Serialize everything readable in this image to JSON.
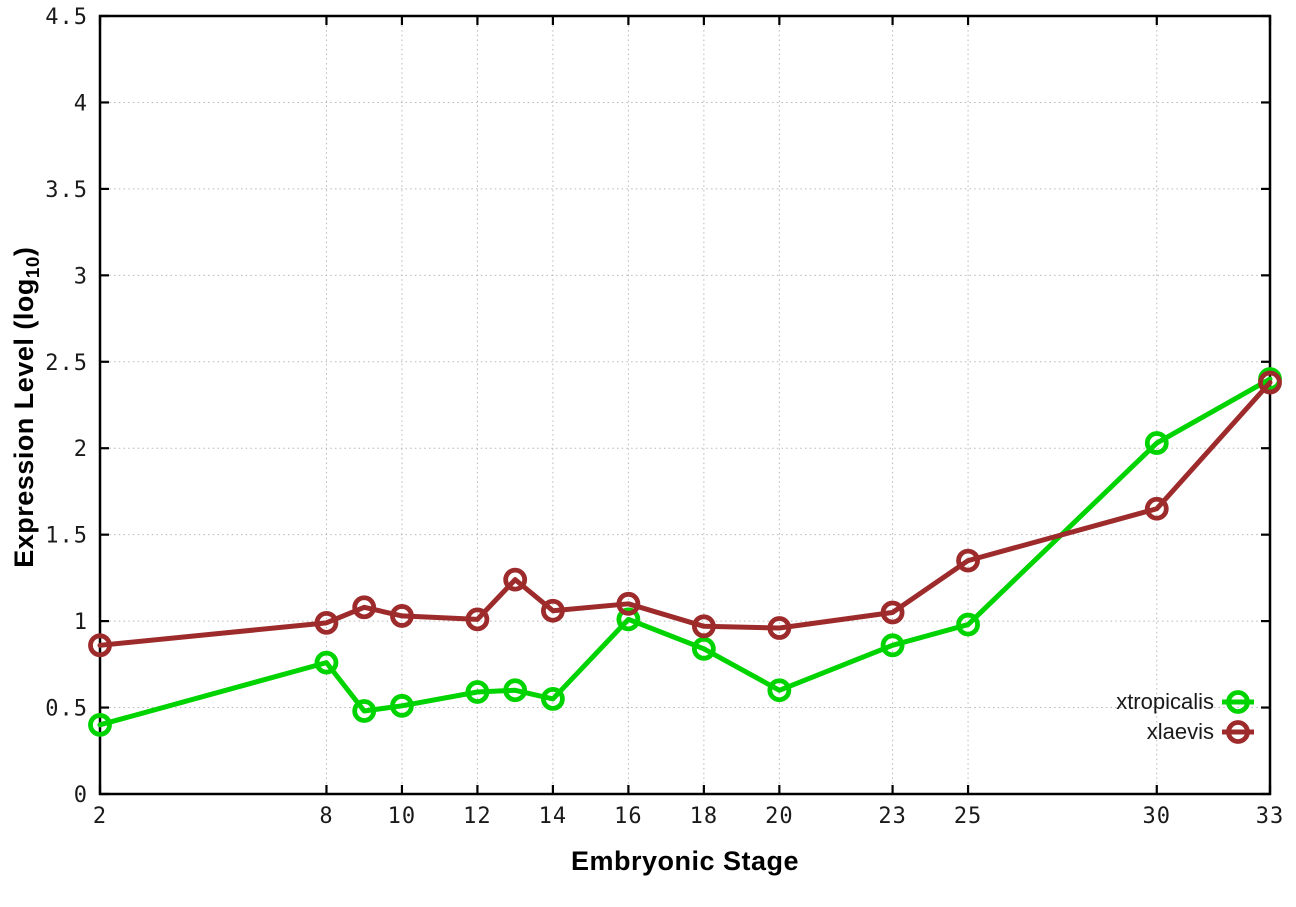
{
  "chart_data": {
    "type": "line",
    "title": "",
    "xlabel": "Embryonic Stage",
    "ylabel": {
      "pre": "Expression Level (log",
      "sub": "10",
      "post": ")"
    },
    "xlim": [
      2,
      33
    ],
    "ylim": [
      0,
      4.5
    ],
    "grid": true,
    "legend_position": "inside-bottom-right",
    "x": [
      2,
      8,
      9,
      10,
      12,
      13,
      14,
      16,
      18,
      20,
      23,
      25,
      30,
      33
    ],
    "x_tick_values": [
      2,
      8,
      10,
      12,
      14,
      16,
      18,
      20,
      23,
      25,
      30,
      33
    ],
    "x_tick_labels": [
      "2",
      "8",
      "10",
      "12",
      "14",
      "16",
      "18",
      "20",
      "23",
      "25",
      "30",
      "33"
    ],
    "y_tick_values": [
      0,
      0.5,
      1,
      1.5,
      2,
      2.5,
      3,
      3.5,
      4,
      4.5
    ],
    "y_tick_labels": [
      "0",
      "0.5",
      "1",
      "1.5",
      "2",
      "2.5",
      "3",
      "3.5",
      "4",
      "4.5"
    ],
    "series": [
      {
        "name": "xtropicalis",
        "color": "#00d400",
        "marker": "open-circle",
        "values": [
          0.4,
          0.76,
          0.48,
          0.51,
          0.59,
          0.6,
          0.55,
          1.01,
          0.84,
          0.6,
          0.86,
          0.98,
          2.03,
          2.4
        ]
      },
      {
        "name": "xlaevis",
        "color": "#9e2b2b",
        "marker": "open-circle",
        "values": [
          0.86,
          0.99,
          1.08,
          1.03,
          1.01,
          1.24,
          1.06,
          1.1,
          0.97,
          0.96,
          1.05,
          1.35,
          1.65,
          2.38
        ]
      }
    ],
    "colors": {
      "border": "#000000",
      "grid": "#b8b8b8",
      "tick_text": "#1a1a1a"
    }
  }
}
